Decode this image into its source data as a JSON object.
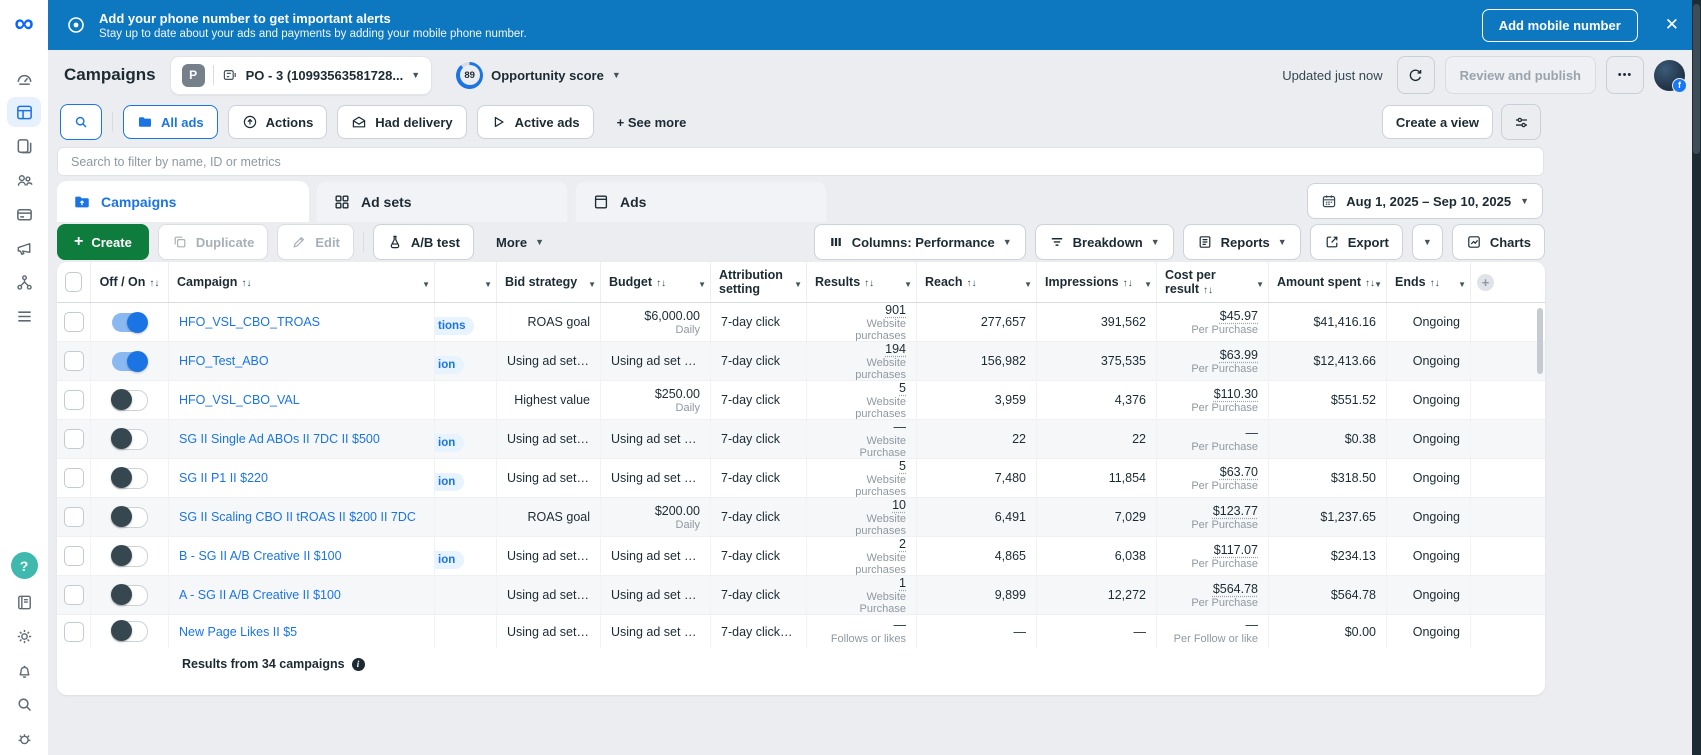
{
  "banner": {
    "title": "Add your phone number to get important alerts",
    "subtitle": "Stay up to date about your ads and payments by adding your mobile phone number.",
    "button": "Add mobile number",
    "close": "✕"
  },
  "header": {
    "title": "Campaigns",
    "account_badge": "P",
    "account_name": "PO - 3 (10993563581728...",
    "opportunity_score": "89",
    "opportunity_label": "Opportunity score",
    "updated": "Updated just now",
    "review_publish": "Review and publish",
    "more_dots": "•••"
  },
  "filters": {
    "all_ads": "All ads",
    "actions": "Actions",
    "had_delivery": "Had delivery",
    "active_ads": "Active ads",
    "see_more": "+ See more",
    "create_view": "Create a view"
  },
  "search": {
    "placeholder": "Search to filter by name, ID or metrics"
  },
  "tabs": [
    {
      "label": "Campaigns"
    },
    {
      "label": "Ad sets"
    },
    {
      "label": "Ads"
    }
  ],
  "date_range": "Aug 1, 2025 – Sep 10, 2025",
  "toolbar": {
    "create": "Create",
    "duplicate": "Duplicate",
    "edit": "Edit",
    "ab_test": "A/B test",
    "more": "More",
    "columns": "Columns: Performance",
    "breakdown": "Breakdown",
    "reports": "Reports",
    "export": "Export",
    "charts": "Charts"
  },
  "table": {
    "columns": [
      {
        "label": "Off / On",
        "sort": "↑↓",
        "caret": false
      },
      {
        "label": "Campaign",
        "sort": "↑↓",
        "caret": true
      },
      {
        "label": "",
        "sort": "",
        "caret": true
      },
      {
        "label": "Bid strategy",
        "sort": "",
        "caret": true
      },
      {
        "label": "Budget",
        "sort": "↑↓",
        "caret": true
      },
      {
        "label": "Attribution setting",
        "sort": "",
        "caret": true
      },
      {
        "label": "Results",
        "sort": "↑↓",
        "caret": true
      },
      {
        "label": "Reach",
        "sort": "↑↓",
        "caret": true
      },
      {
        "label": "Impressions",
        "sort": "↑↓",
        "caret": true
      },
      {
        "label": "Cost per result",
        "sort": "↑↓",
        "caret": true
      },
      {
        "label": "Amount spent",
        "sort": "↑↓",
        "caret": true
      },
      {
        "label": "Ends",
        "sort": "↑↓",
        "caret": true
      }
    ],
    "rows": [
      {
        "campaign": "HFO_VSL_CBO_TROAS",
        "on": true,
        "badge": "tions",
        "bid": "ROAS goal",
        "budget": "$6,000.00",
        "budget_sub": "Daily",
        "attribution": "7-day click",
        "results": "901",
        "results_sub": "Website purchases",
        "reach": "277,657",
        "impressions": "391,562",
        "cpr": "$45.97",
        "cpr_sub": "Per Purchase",
        "spent": "$41,416.16",
        "ends": "Ongoing"
      },
      {
        "campaign": "HFO_Test_ABO",
        "on": true,
        "badge": "ion",
        "bid": "Using ad set bid...",
        "budget": "Using ad set bu...",
        "budget_sub": "",
        "attribution": "7-day click",
        "results": "194",
        "results_sub": "Website purchases",
        "reach": "156,982",
        "impressions": "375,535",
        "cpr": "$63.99",
        "cpr_sub": "Per Purchase",
        "spent": "$12,413.66",
        "ends": "Ongoing"
      },
      {
        "campaign": "HFO_VSL_CBO_VAL",
        "on": false,
        "badge": "",
        "bid": "Highest value",
        "budget": "$250.00",
        "budget_sub": "Daily",
        "attribution": "7-day click",
        "results": "5",
        "results_sub": "Website purchases",
        "reach": "3,959",
        "impressions": "4,376",
        "cpr": "$110.30",
        "cpr_sub": "Per Purchase",
        "spent": "$551.52",
        "ends": "Ongoing"
      },
      {
        "campaign": "SG II Single Ad ABOs II 7DC II $500",
        "on": false,
        "badge": "ion",
        "bid": "Using ad set bid...",
        "budget": "Using ad set bu...",
        "budget_sub": "",
        "attribution": "7-day click",
        "results": "—",
        "results_sub": "Website Purchase",
        "reach": "22",
        "impressions": "22",
        "cpr": "—",
        "cpr_sub": "Per Purchase",
        "spent": "$0.38",
        "ends": "Ongoing"
      },
      {
        "campaign": "SG II P1 II $220",
        "on": false,
        "badge": "ion",
        "bid": "Using ad set bid...",
        "budget": "Using ad set bu...",
        "budget_sub": "",
        "attribution": "7-day click",
        "results": "5",
        "results_sub": "Website purchases",
        "reach": "7,480",
        "impressions": "11,854",
        "cpr": "$63.70",
        "cpr_sub": "Per Purchase",
        "spent": "$318.50",
        "ends": "Ongoing"
      },
      {
        "campaign": "SG II Scaling CBO II tROAS II $200 II 7DC",
        "on": false,
        "badge": "",
        "bid": "ROAS goal",
        "budget": "$200.00",
        "budget_sub": "Daily",
        "attribution": "7-day click",
        "results": "10",
        "results_sub": "Website purchases",
        "reach": "6,491",
        "impressions": "7,029",
        "cpr": "$123.77",
        "cpr_sub": "Per Purchase",
        "spent": "$1,237.65",
        "ends": "Ongoing"
      },
      {
        "campaign": "B - SG II A/B Creative II $100",
        "on": false,
        "badge": "ion",
        "bid": "Using ad set bid...",
        "budget": "Using ad set bu...",
        "budget_sub": "",
        "attribution": "7-day click",
        "results": "2",
        "results_sub": "Website purchases",
        "reach": "4,865",
        "impressions": "6,038",
        "cpr": "$117.07",
        "cpr_sub": "Per Purchase",
        "spent": "$234.13",
        "ends": "Ongoing"
      },
      {
        "campaign": "A - SG II A/B Creative II $100",
        "on": false,
        "badge": "",
        "bid": "Using ad set bid...",
        "budget": "Using ad set bu...",
        "budget_sub": "",
        "attribution": "7-day click",
        "results": "1",
        "results_sub": "Website Purchase",
        "reach": "9,899",
        "impressions": "12,272",
        "cpr": "$564.78",
        "cpr_sub": "Per Purchase",
        "spent": "$564.78",
        "ends": "Ongoing"
      },
      {
        "campaign": "New Page Likes II $5",
        "on": false,
        "badge": "",
        "bid": "Using ad set bid...",
        "budget": "Using ad set bu...",
        "budget_sub": "",
        "attribution": "7-day click or ...",
        "results": "—",
        "results_sub": "Follows or likes",
        "reach": "—",
        "impressions": "—",
        "cpr": "—",
        "cpr_sub": "Per Follow or like",
        "spent": "$0.00",
        "ends": "Ongoing"
      }
    ]
  },
  "footer": {
    "results_summary": "Results from 34 campaigns"
  },
  "sidebar": {
    "top_icons": [
      "overview-gauge",
      "campaigns-table",
      "ads-reporting-pages",
      "audiences",
      "billing-card",
      "advertise-megaphone",
      "workflow",
      "all-tools-menu"
    ],
    "bottom_icons": [
      "help",
      "guide-book",
      "settings-gear",
      "notifications-bell",
      "search",
      "diagnostics-bug"
    ],
    "help_glyph": "?"
  },
  "colors": {
    "banner_blue": "#0d77bf",
    "accent_blue": "#1b74e4",
    "create_green": "#0e7c3d",
    "help_teal": "#3fb9ae",
    "toggle_off_knob": "#37474f",
    "badge_bg": "#e7f3ff"
  }
}
